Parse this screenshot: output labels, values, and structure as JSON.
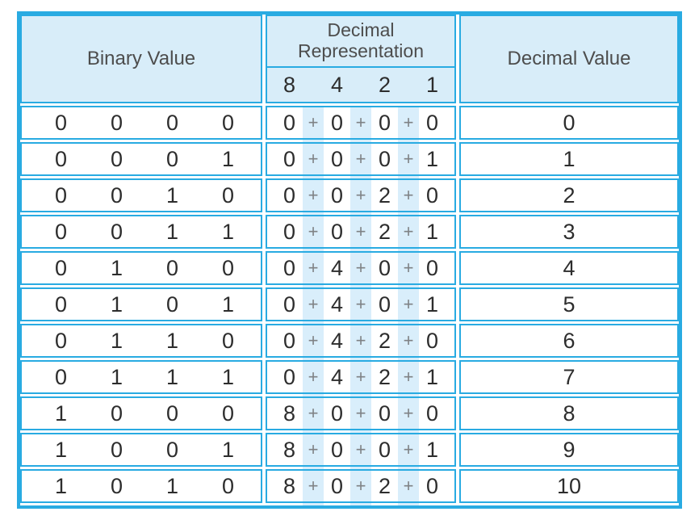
{
  "table": {
    "columns": {
      "binary": "Binary Value",
      "representation": "Decimal Representation",
      "place_values": [
        "8",
        "4",
        "2",
        "1"
      ],
      "decimal": "Decimal Value"
    },
    "plus": "+",
    "rows": [
      {
        "binary": [
          "0",
          "0",
          "0",
          "0"
        ],
        "rep": [
          "0",
          "0",
          "0",
          "0"
        ],
        "decimal": "0"
      },
      {
        "binary": [
          "0",
          "0",
          "0",
          "1"
        ],
        "rep": [
          "0",
          "0",
          "0",
          "1"
        ],
        "decimal": "1"
      },
      {
        "binary": [
          "0",
          "0",
          "1",
          "0"
        ],
        "rep": [
          "0",
          "0",
          "2",
          "0"
        ],
        "decimal": "2"
      },
      {
        "binary": [
          "0",
          "0",
          "1",
          "1"
        ],
        "rep": [
          "0",
          "0",
          "2",
          "1"
        ],
        "decimal": "3"
      },
      {
        "binary": [
          "0",
          "1",
          "0",
          "0"
        ],
        "rep": [
          "0",
          "4",
          "0",
          "0"
        ],
        "decimal": "4"
      },
      {
        "binary": [
          "0",
          "1",
          "0",
          "1"
        ],
        "rep": [
          "0",
          "4",
          "0",
          "1"
        ],
        "decimal": "5"
      },
      {
        "binary": [
          "0",
          "1",
          "1",
          "0"
        ],
        "rep": [
          "0",
          "4",
          "2",
          "0"
        ],
        "decimal": "6"
      },
      {
        "binary": [
          "0",
          "1",
          "1",
          "1"
        ],
        "rep": [
          "0",
          "4",
          "2",
          "1"
        ],
        "decimal": "7"
      },
      {
        "binary": [
          "1",
          "0",
          "0",
          "0"
        ],
        "rep": [
          "8",
          "0",
          "0",
          "0"
        ],
        "decimal": "8"
      },
      {
        "binary": [
          "1",
          "0",
          "0",
          "1"
        ],
        "rep": [
          "8",
          "0",
          "0",
          "1"
        ],
        "decimal": "9"
      },
      {
        "binary": [
          "1",
          "0",
          "1",
          "0"
        ],
        "rep": [
          "8",
          "0",
          "2",
          "0"
        ],
        "decimal": "10"
      }
    ]
  },
  "colors": {
    "border_blue": "#29abe2",
    "header_fill": "#d8edf9",
    "stripe_fill": "#d9eefb",
    "digit_text": "#2d2d2d",
    "plus_text": "#7f8285",
    "header_text": "#4d4d4d"
  },
  "chart_data": {
    "type": "table",
    "title": "",
    "columns": [
      "Binary Value",
      "Decimal Representation (8 4 2 1)",
      "Decimal Value"
    ],
    "rows": [
      [
        "0 0 0 0",
        "0 + 0 + 0 + 0",
        "0"
      ],
      [
        "0 0 0 1",
        "0 + 0 + 0 + 1",
        "1"
      ],
      [
        "0 0 1 0",
        "0 + 0 + 2 + 0",
        "2"
      ],
      [
        "0 0 1 1",
        "0 + 0 + 2 + 1",
        "3"
      ],
      [
        "0 1 0 0",
        "0 + 4 + 0 + 0",
        "4"
      ],
      [
        "0 1 0 1",
        "0 + 4 + 0 + 1",
        "5"
      ],
      [
        "0 1 1 0",
        "0 + 4 + 2 + 0",
        "6"
      ],
      [
        "0 1 1 1",
        "0 + 4 + 2 + 1",
        "7"
      ],
      [
        "1 0 0 0",
        "8 + 0 + 0 + 0",
        "8"
      ],
      [
        "1 0 0 1",
        "8 + 0 + 0 + 1",
        "9"
      ],
      [
        "1 0 1 0",
        "8 + 0 + 2 + 0",
        "10"
      ]
    ]
  }
}
